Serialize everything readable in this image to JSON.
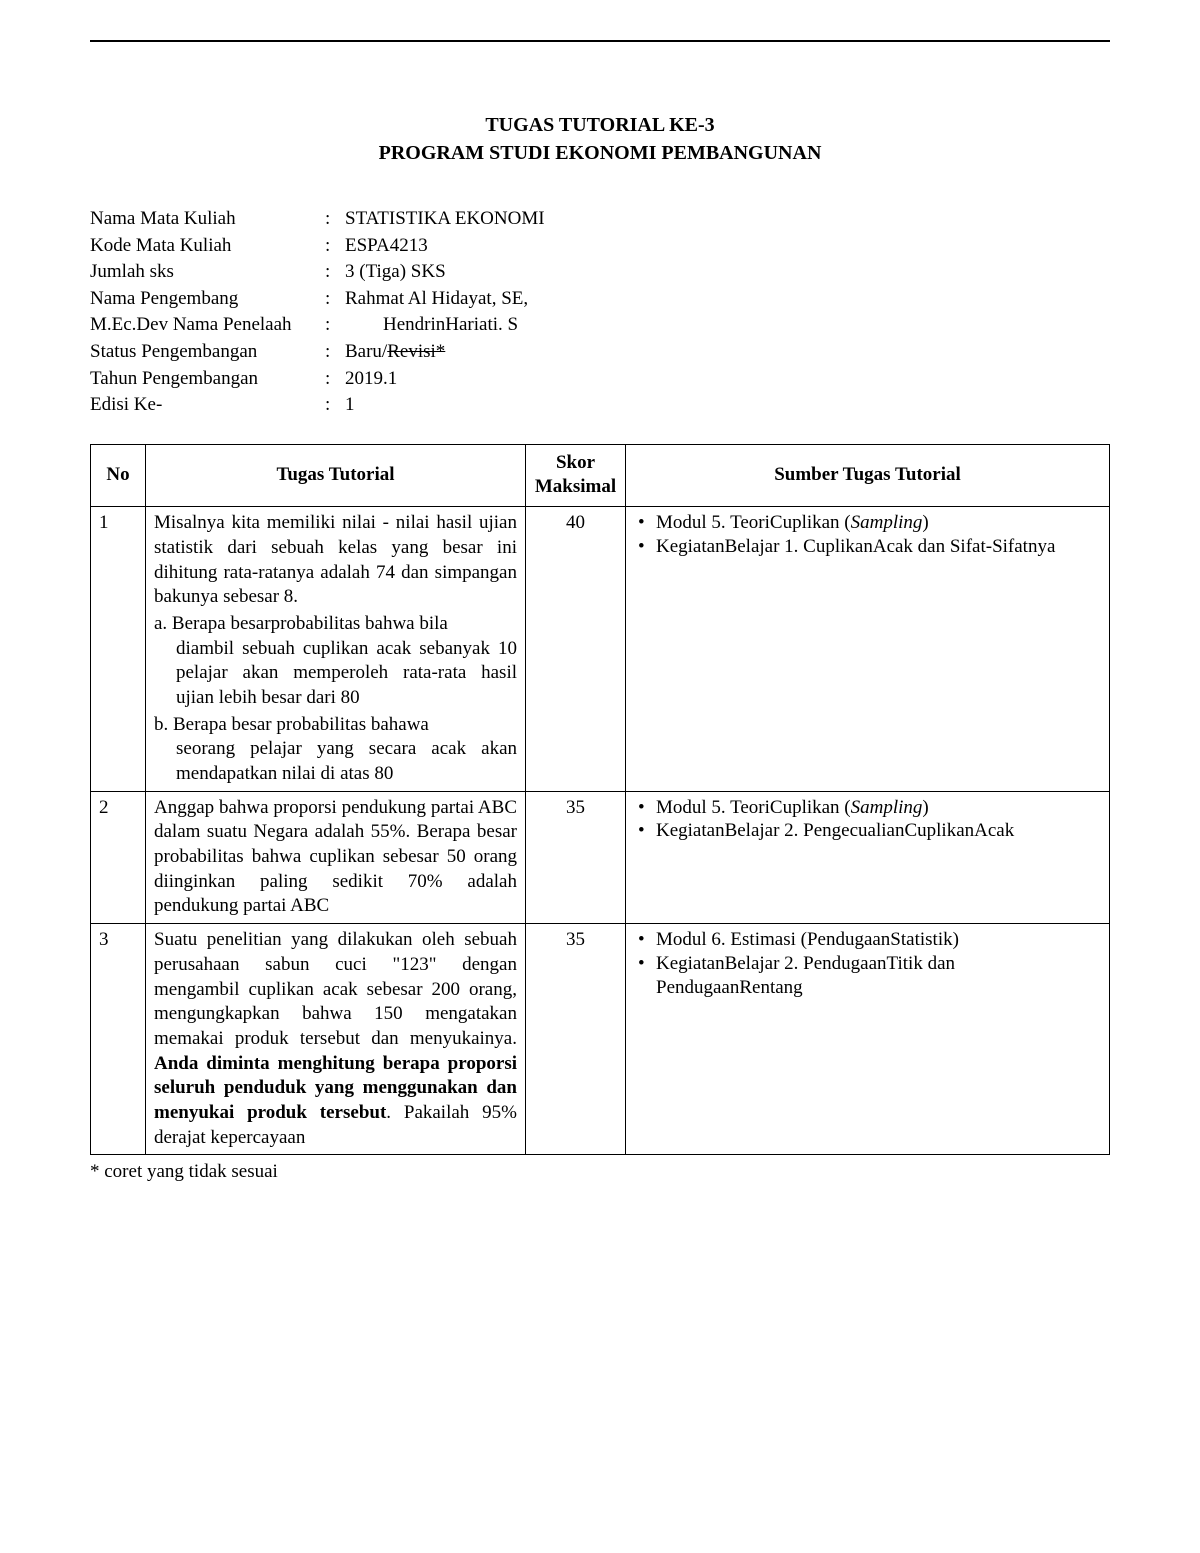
{
  "header": {
    "line1": "TUGAS TUTORIAL  KE-3",
    "line2": "PROGRAM STUDI EKONOMI PEMBANGUNAN"
  },
  "meta": [
    {
      "label": "Nama Mata Kuliah",
      "value_plain": "STATISTIKA EKONOMI"
    },
    {
      "label": "Kode Mata Kuliah",
      "value_plain": "ESPA4213"
    },
    {
      "label": "Jumlah sks",
      "value_plain": "3 (Tiga) SKS"
    },
    {
      "label": "Nama Pengembang",
      "value_plain": "Rahmat Al Hidayat, SE,"
    },
    {
      "label": "M.Ec.Dev Nama Penelaah",
      "value_indent": "        HendrinHariati. S"
    },
    {
      "label": "Status Pengembangan",
      "value_prefix": "Baru/",
      "value_strike": "Revisi*"
    },
    {
      "label": "Tahun Pengembangan",
      "value_plain": "2019.1"
    },
    {
      "label": "Edisi Ke-",
      "value_plain": "1"
    }
  ],
  "table": {
    "headers": {
      "no": "No",
      "tugas": "Tugas Tutorial",
      "skor_line1": "Skor",
      "skor_line2": "Maksimal",
      "sumber": "Sumber Tugas Tutorial"
    },
    "rows": [
      {
        "no": "1",
        "skor": "40",
        "tugas_intro": "Misalnya kita memiliki nilai - nilai hasil ujian statistik dari sebuah kelas yang besar ini dihitung rata-ratanya adalah 74 dan simpangan bakunya sebesar 8.",
        "tugas_a_head": "a. Berapa besarprobabilitas bahwa bila",
        "tugas_a_body": "diambil sebuah cuplikan acak sebanyak 10 pelajar akan memperoleh rata-rata hasil ujian lebih besar dari 80",
        "tugas_b_head": "b. Berapa besar probabilitas bahawa",
        "tugas_b_body": "seorang pelajar yang secara acak akan mendapatkan nilai di atas 80",
        "sources": [
          {
            "pre": "Modul 5. TeoriCuplikan (",
            "italic": "Sampling",
            "post": ")"
          },
          {
            "pre": "KegiatanBelajar 1. CuplikanAcak dan Sifat-Sifatnya"
          }
        ]
      },
      {
        "no": "2",
        "skor": "35",
        "tugas_intro": "Anggap bahwa proporsi pendukung partai ABC dalam suatu Negara adalah 55%. Berapa besar probabilitas bahwa cuplikan sebesar 50 orang diinginkan paling sedikit 70% adalah pendukung partai ABC",
        "sources": [
          {
            "pre": "Modul 5. TeoriCuplikan (",
            "italic": "Sampling",
            "post": ")"
          },
          {
            "pre": "KegiatanBelajar 2. PengecualianCuplikanAcak"
          }
        ]
      },
      {
        "no": "3",
        "skor": "35",
        "tugas_pre": "Suatu penelitian yang dilakukan oleh sebuah perusahaan sabun cuci \"123\" dengan mengambil cuplikan acak sebesar 200 orang, mengungkapkan bahwa 150 mengatakan memakai produk tersebut dan menyukainya. ",
        "tugas_bold": "Anda diminta menghitung berapa proporsi seluruh penduduk yang menggunakan dan menyukai produk tersebut",
        "tugas_post": ". Pakailah 95% derajat kepercayaan",
        "sources": [
          {
            "pre": "Modul 6. Estimasi (PendugaanStatistik)"
          },
          {
            "pre": "KegiatanBelajar 2. PendugaanTitik dan PendugaanRentang"
          }
        ]
      }
    ]
  },
  "footnote": "* coret yang tidak sesuai"
}
